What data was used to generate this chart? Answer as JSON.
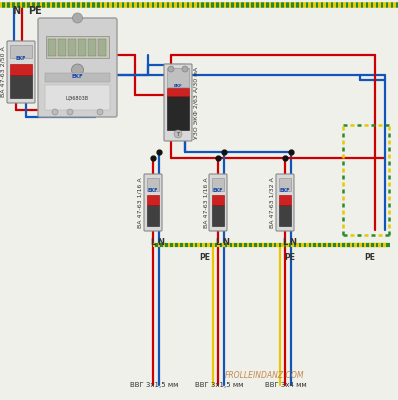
{
  "bg_color": "#f0f0ea",
  "wire_colors": {
    "phase": "#cc0000",
    "neutral": "#1155bb",
    "ground_y": "#e8c800",
    "ground_g": "#2a8a2a"
  },
  "labels": {
    "main_breaker": "ВА 47-63 2/50 А",
    "rcd": "УЗО ЭКФ 2/63 А/30 мА",
    "breaker1": "ВА 47-63 1/16 А",
    "breaker2": "ВА 47-63 1/16 А",
    "breaker3": "ВА 47-63 1/32 А",
    "cable1": "ВВГ 3х1,5 мм",
    "cable2": "ВВГ 3х1,5 мм",
    "cable3": "ВВГ 3х4 мм",
    "N_top": "N",
    "PE_top": "PE",
    "watermark": "FROLLEINDANZ.COM"
  }
}
